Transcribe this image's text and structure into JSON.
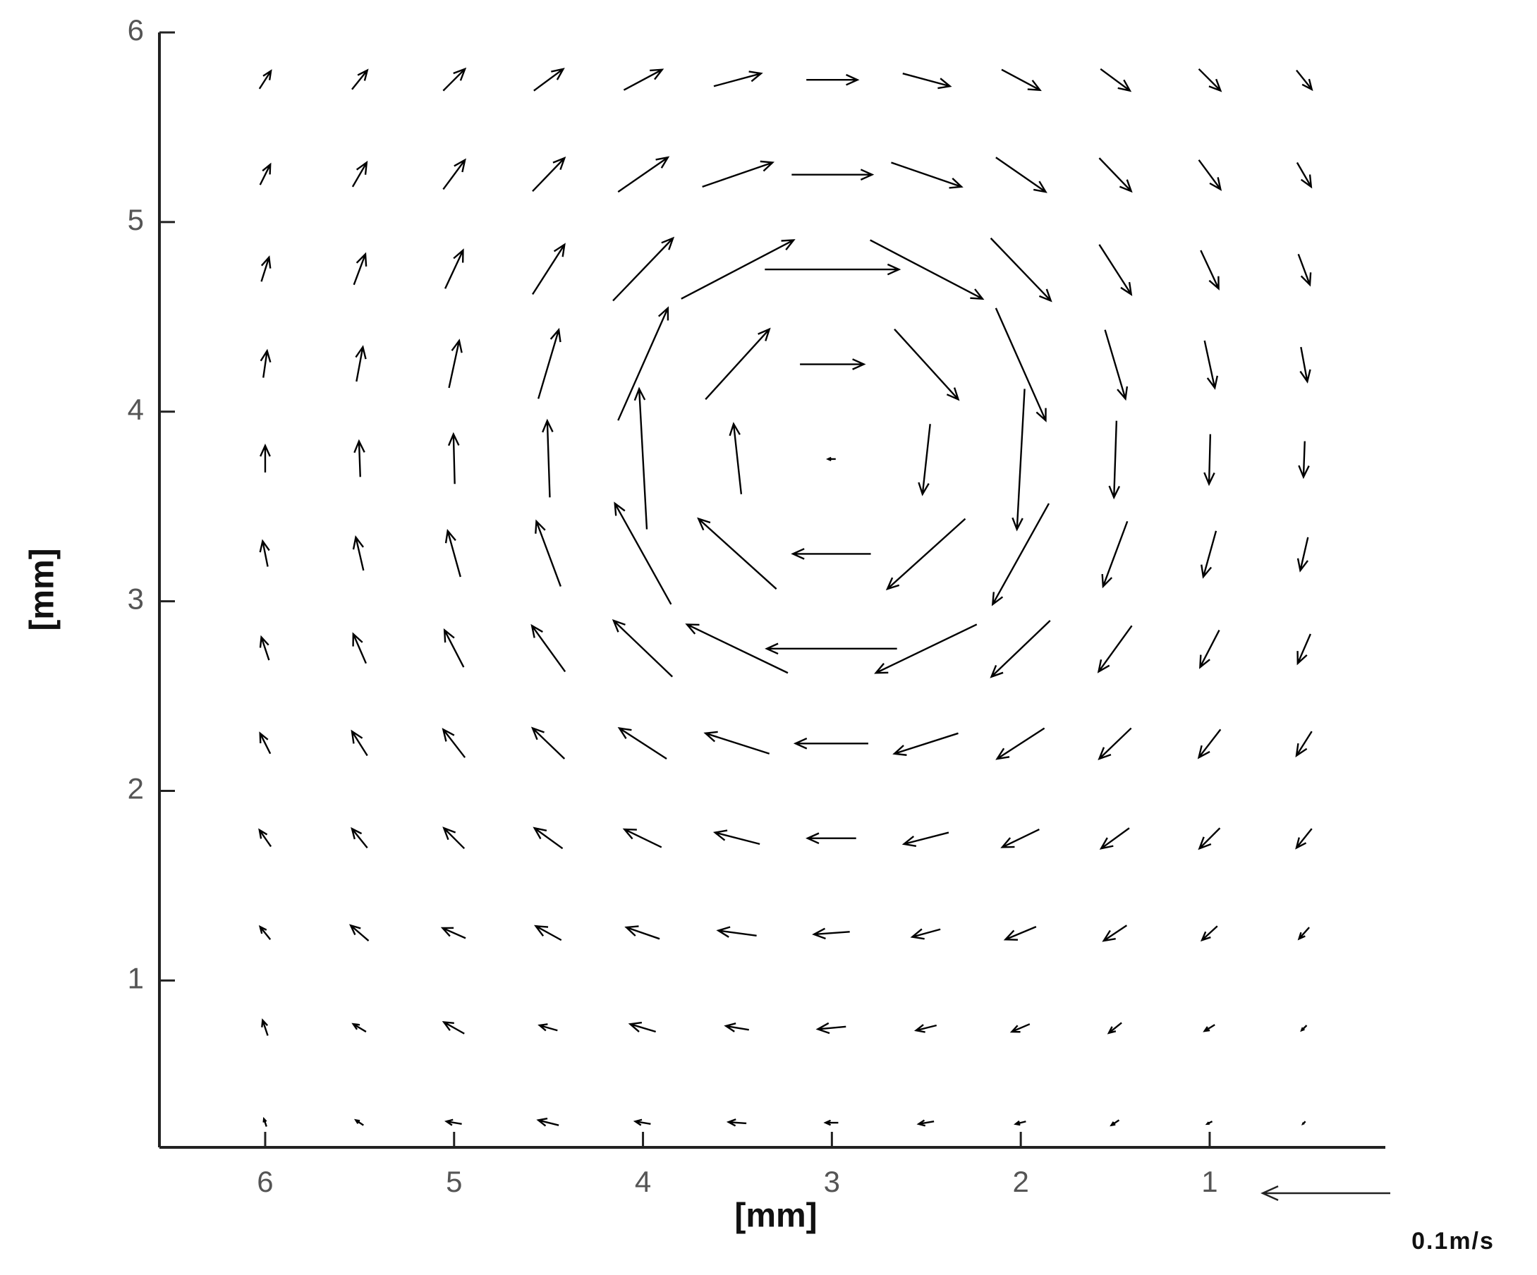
{
  "chart_data": {
    "type": "quiver",
    "xlabel": "[mm]",
    "ylabel": "[mm]",
    "xlim": [
      6.56,
      0.07
    ],
    "ylim": [
      0.12,
      6
    ],
    "xticks": [
      6,
      5,
      4,
      3,
      2,
      1
    ],
    "yticks": [
      1,
      2,
      3,
      4,
      5,
      6
    ],
    "color": "#000000",
    "reference": {
      "value": 0.1,
      "label": "0.1m/s"
    },
    "x": [
      6,
      5.5,
      5,
      4.5,
      4,
      3.5,
      3,
      2.5,
      2,
      1.5,
      1,
      0.5
    ],
    "y": [
      5.75,
      5.25,
      4.75,
      4.25,
      3.75,
      3.25,
      2.75,
      2.25,
      1.75,
      1.25,
      0.75,
      0.25
    ],
    "u": [
      [
        -0.009,
        -0.012,
        -0.017,
        -0.023,
        -0.03,
        -0.037,
        -0.04,
        -0.037,
        -0.03,
        -0.023,
        -0.017,
        -0.012
      ],
      [
        -0.008,
        -0.011,
        -0.017,
        -0.025,
        -0.039,
        -0.055,
        -0.063,
        -0.055,
        -0.039,
        -0.025,
        -0.017,
        -0.011
      ],
      [
        -0.006,
        -0.009,
        -0.014,
        -0.025,
        -0.047,
        -0.088,
        -0.105,
        -0.088,
        -0.047,
        -0.025,
        -0.014,
        -0.009
      ],
      [
        -0.003,
        -0.005,
        -0.008,
        -0.016,
        -0.039,
        -0.05,
        -0.05,
        -0.05,
        -0.039,
        -0.016,
        -0.008,
        -0.005
      ],
      [
        0,
        0.001,
        0.001,
        0.002,
        0.006,
        0.006,
        0.006,
        0.006,
        0.006,
        0.002,
        0.001,
        0.001
      ],
      [
        0.004,
        0.006,
        0.01,
        0.019,
        0.044,
        0.061,
        0.061,
        0.061,
        0.044,
        0.019,
        0.01,
        0.006
      ],
      [
        0.006,
        0.01,
        0.015,
        0.026,
        0.046,
        0.079,
        0.102,
        0.079,
        0.046,
        0.026,
        0.015,
        0.01
      ],
      [
        0.008,
        0.012,
        0.017,
        0.025,
        0.037,
        0.05,
        0.057,
        0.05,
        0.037,
        0.025,
        0.017,
        0.012
      ],
      [
        0.009,
        0.012,
        0.016,
        0.022,
        0.029,
        0.035,
        0.038,
        0.035,
        0.029,
        0.022,
        0.016,
        0.012
      ],
      [
        0.008,
        0.014,
        0.018,
        0.02,
        0.026,
        0.03,
        0.028,
        0.022,
        0.024,
        0.018,
        0.012,
        0.008
      ],
      [
        0.004,
        0.01,
        0.016,
        0.014,
        0.02,
        0.018,
        0.022,
        0.016,
        0.014,
        0.01,
        0.008,
        0.004
      ],
      [
        0.002,
        0.006,
        0.012,
        0.016,
        0.012,
        0.014,
        0.01,
        0.012,
        0.008,
        0.006,
        0.004,
        0.002
      ]
    ],
    "v": [
      [
        0.014,
        0.015,
        0.017,
        0.017,
        0.016,
        0.01,
        0,
        -0.01,
        -0.016,
        -0.017,
        -0.017,
        -0.015
      ],
      [
        0.016,
        0.019,
        0.023,
        0.026,
        0.027,
        0.019,
        0,
        -0.019,
        -0.027,
        -0.026,
        -0.023,
        -0.019
      ],
      [
        0.019,
        0.024,
        0.03,
        0.039,
        0.049,
        0.046,
        0,
        -0.046,
        -0.049,
        -0.039,
        -0.03,
        -0.024
      ],
      [
        0.021,
        0.027,
        0.037,
        0.054,
        0.088,
        0.055,
        0,
        -0.055,
        -0.088,
        -0.054,
        -0.037,
        -0.027
      ],
      [
        0.021,
        0.028,
        0.039,
        0.06,
        0.11,
        0.055,
        0,
        -0.055,
        -0.11,
        -0.06,
        -0.039,
        -0.028
      ],
      [
        0.02,
        0.026,
        0.036,
        0.051,
        0.079,
        0.055,
        0,
        -0.055,
        -0.079,
        -0.051,
        -0.036,
        -0.026
      ],
      [
        0.018,
        0.023,
        0.029,
        0.036,
        0.044,
        0.038,
        0,
        -0.038,
        -0.044,
        -0.036,
        -0.029,
        -0.023
      ],
      [
        0.016,
        0.019,
        0.022,
        0.024,
        0.024,
        0.016,
        0,
        -0.016,
        -0.024,
        -0.024,
        -0.022,
        -0.019
      ],
      [
        0.013,
        0.015,
        0.016,
        0.016,
        0.014,
        0.009,
        0,
        -0.009,
        -0.014,
        -0.016,
        -0.016,
        -0.015
      ],
      [
        0.01,
        0.012,
        0.008,
        0.011,
        0.009,
        0.004,
        -0.002,
        -0.006,
        -0.01,
        -0.012,
        -0.011,
        -0.009
      ],
      [
        0.012,
        0.006,
        0.009,
        0.004,
        0.006,
        0.003,
        -0.002,
        -0.004,
        -0.006,
        -0.008,
        -0.005,
        -0.004
      ],
      [
        0.006,
        0.004,
        0.002,
        0.004,
        0.002,
        0.001,
        0,
        -0.002,
        -0.002,
        -0.004,
        -0.002,
        -0.002
      ]
    ]
  }
}
